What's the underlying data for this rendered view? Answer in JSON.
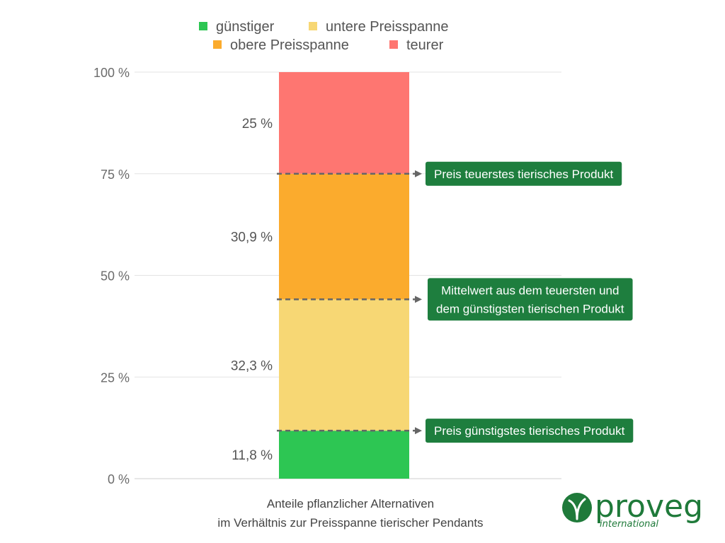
{
  "chart_data": {
    "type": "bar",
    "stacked": true,
    "categories": [
      ""
    ],
    "series": [
      {
        "name": "günstiger",
        "values": [
          11.8
        ],
        "label": "11,8 %",
        "color": "#2dc653"
      },
      {
        "name": "untere Preisspanne",
        "values": [
          32.3
        ],
        "label": "32,3 %",
        "color": "#f7d774"
      },
      {
        "name": "obere Preisspanne",
        "values": [
          30.9
        ],
        "label": "30,9 %",
        "color": "#fbab2d"
      },
      {
        "name": "teurer",
        "values": [
          25
        ],
        "label": "25 %",
        "color": "#fe7671"
      }
    ],
    "ylim": [
      0,
      100
    ],
    "yticks": [
      0,
      25,
      50,
      75,
      100
    ],
    "ytick_labels": [
      "0 %",
      "25 %",
      "50 %",
      "75 %",
      "100 %"
    ],
    "xlabel_lines": [
      "Anteile pflanzlicher Alternativen",
      "im Verhältnis zur Preisspanne tierischer Pendants"
    ],
    "ylabel": "",
    "grid": true,
    "legend_position": "top",
    "annotations": [
      {
        "y": 11.8,
        "lines": [
          "Preis günstigstes tierisches Produkt"
        ]
      },
      {
        "y": 44.1,
        "lines": [
          "Mittelwert aus dem teuersten und",
          "dem günstigsten tierischen Produkt"
        ]
      },
      {
        "y": 75,
        "lines": [
          "Preis teuerstes tierisches Produkt"
        ]
      }
    ],
    "annotation_color": "#1e7e3e"
  },
  "logo": {
    "text": "proveg",
    "subtext": "international",
    "color": "#1f7a3a"
  }
}
